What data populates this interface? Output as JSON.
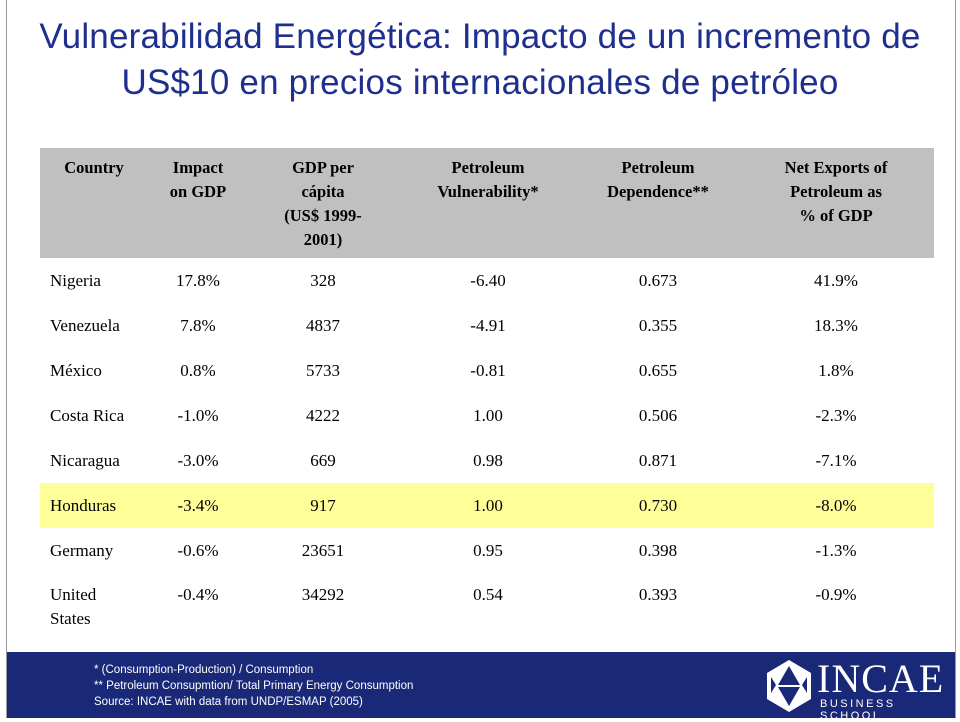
{
  "title": {
    "line1": "Vulnerabilidad Energética: Impacto de un incremento de",
    "line2": "US$10 en precios internacionales de petróleo"
  },
  "table": {
    "headers": {
      "country": [
        "Country"
      ],
      "impact": [
        "Impact",
        "on GDP"
      ],
      "gdp": [
        "GDP per",
        "cápita",
        "(US$ 1999-",
        "2001)"
      ],
      "vuln": [
        "Petroleum",
        "Vulnerability*"
      ],
      "dep": [
        "Petroleum",
        "Dependence**"
      ],
      "netexp": [
        "Net Exports of",
        "Petroleum as",
        "% of GDP"
      ]
    },
    "rows": [
      {
        "country": "Nigeria",
        "impact": "17.8%",
        "gdp": "328",
        "vuln": "-6.40",
        "dep": "0.673",
        "netexp": "41.9%"
      },
      {
        "country": "Venezuela",
        "impact": "7.8%",
        "gdp": "4837",
        "vuln": "-4.91",
        "dep": "0.355",
        "netexp": "18.3%"
      },
      {
        "country": "México",
        "impact": "0.8%",
        "gdp": "5733",
        "vuln": "-0.81",
        "dep": "0.655",
        "netexp": "1.8%"
      },
      {
        "country": "Costa Rica",
        "impact": "-1.0%",
        "gdp": "4222",
        "vuln": "1.00",
        "dep": "0.506",
        "netexp": "-2.3%"
      },
      {
        "country": "Nicaragua",
        "impact": "-3.0%",
        "gdp": "669",
        "vuln": "0.98",
        "dep": "0.871",
        "netexp": "-7.1%"
      },
      {
        "country": "Honduras",
        "impact": "-3.4%",
        "gdp": "917",
        "vuln": "1.00",
        "dep": "0.730",
        "netexp": "-8.0%"
      },
      {
        "country": "Germany",
        "impact": "-0.6%",
        "gdp": "23651",
        "vuln": "0.95",
        "dep": "0.398",
        "netexp": "-1.3%"
      },
      {
        "country_lines": [
          "United",
          "States"
        ],
        "impact": "-0.4%",
        "gdp": "34292",
        "vuln": "0.54",
        "dep": "0.393",
        "netexp": "-0.9%"
      }
    ]
  },
  "footer": {
    "notes": [
      "* (Consumption-Production) / Consumption",
      "** Petroleum Consupmtion/ Total Primary Energy Consumption",
      "Source: INCAE  with data from UNDP/ESMAP (2005)"
    ],
    "logo_word": "INCAE",
    "logo_sub": "BUSINESS SCHOOL"
  },
  "colors": {
    "title": "#1f2f8f",
    "header_bg": "#c0c0c0",
    "highlight_row": "#ffff99",
    "footer_bg": "#1a2878"
  },
  "highlighted_country": "Honduras"
}
